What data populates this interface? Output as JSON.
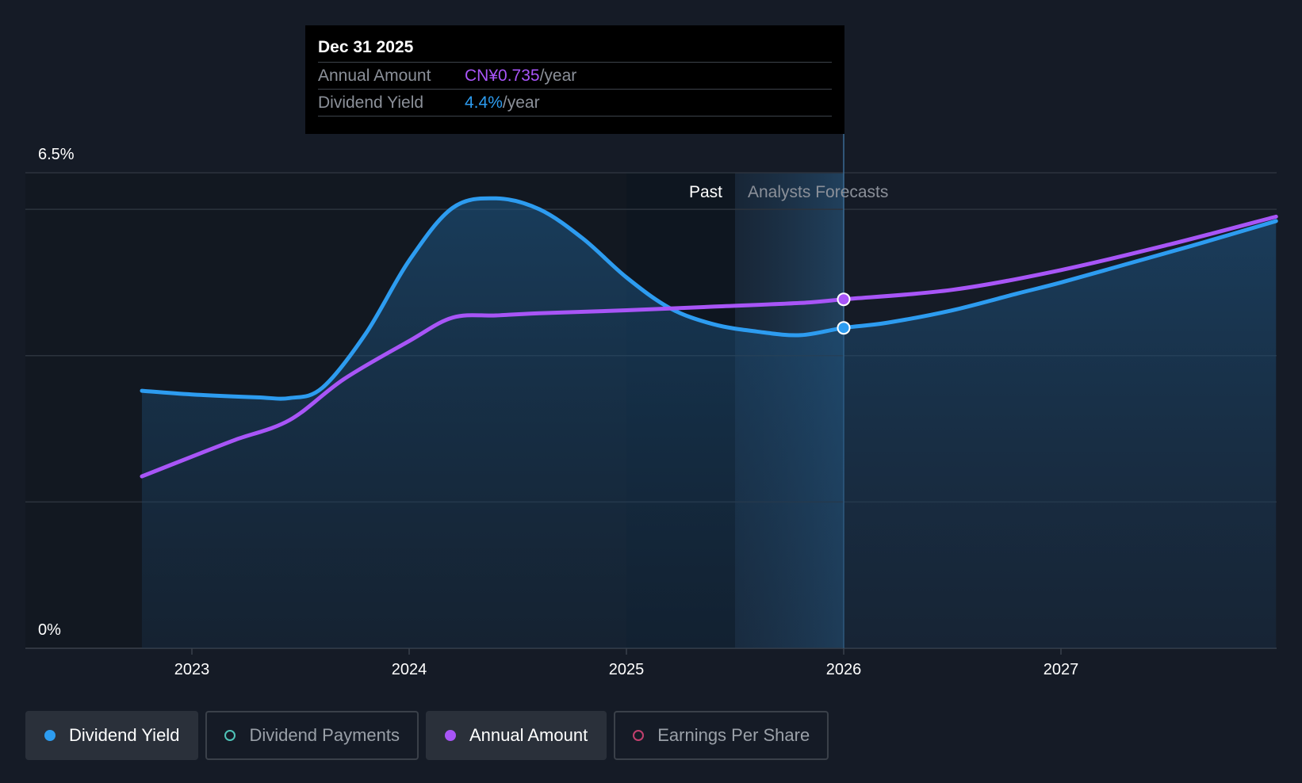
{
  "tooltip": {
    "date": "Dec 31 2025",
    "rows": [
      {
        "label": "Annual Amount",
        "value": "CN¥0.735",
        "unit": "/year",
        "color": "#a855f7"
      },
      {
        "label": "Dividend Yield",
        "value": "4.4%",
        "unit": "/year",
        "color": "#2d9cf0"
      }
    ]
  },
  "legend": [
    {
      "label": "Dividend Yield",
      "color": "#2d9cf0",
      "active": true,
      "filled": true
    },
    {
      "label": "Dividend Payments",
      "color": "#4fc3b8",
      "active": false,
      "filled": false
    },
    {
      "label": "Annual Amount",
      "color": "#a855f7",
      "active": true,
      "filled": true
    },
    {
      "label": "Earnings Per Share",
      "color": "#c2406e",
      "active": false,
      "filled": false
    }
  ],
  "chart_data": {
    "type": "line",
    "x_ticks": [
      "2023",
      "2024",
      "2025",
      "2026",
      "2027"
    ],
    "y_tick_labels": [
      "6.5%",
      "0%"
    ],
    "ylim": [
      0,
      6.5
    ],
    "regions": {
      "past_label": "Past",
      "forecast_label": "Analysts Forecasts",
      "past_end": 2025.5,
      "tooltip_date": 2026.0
    },
    "series": [
      {
        "name": "Dividend Yield",
        "color": "#2d9cf0",
        "area": true,
        "x": [
          2022.77,
          2023.0,
          2023.3,
          2023.45,
          2023.6,
          2023.8,
          2024.0,
          2024.2,
          2024.4,
          2024.6,
          2024.8,
          2025.0,
          2025.2,
          2025.4,
          2025.6,
          2025.8,
          2026.0,
          2026.2,
          2026.5,
          2026.8,
          2027.0,
          2027.3,
          2027.6,
          2027.99
        ],
        "y": [
          3.52,
          3.47,
          3.43,
          3.42,
          3.56,
          4.3,
          5.3,
          6.02,
          6.15,
          6.0,
          5.6,
          5.07,
          4.65,
          4.43,
          4.33,
          4.28,
          4.38,
          4.45,
          4.62,
          4.85,
          5.0,
          5.25,
          5.5,
          5.84
        ]
      },
      {
        "name": "Annual Amount",
        "color": "#a855f7",
        "area": false,
        "x": [
          2022.77,
          2023.0,
          2023.2,
          2023.45,
          2023.7,
          2024.0,
          2024.2,
          2024.4,
          2024.6,
          2025.0,
          2025.4,
          2025.8,
          2026.0,
          2026.5,
          2027.0,
          2027.5,
          2027.99
        ],
        "y": [
          2.35,
          2.62,
          2.85,
          3.12,
          3.68,
          4.2,
          4.52,
          4.55,
          4.58,
          4.62,
          4.67,
          4.72,
          4.77,
          4.9,
          5.17,
          5.52,
          5.9
        ]
      }
    ],
    "markers": [
      {
        "series": "Dividend Yield",
        "x": 2026.0,
        "y": 4.38,
        "color": "#2d9cf0"
      },
      {
        "series": "Annual Amount",
        "x": 2026.0,
        "y": 4.77,
        "color": "#a855f7"
      }
    ]
  }
}
